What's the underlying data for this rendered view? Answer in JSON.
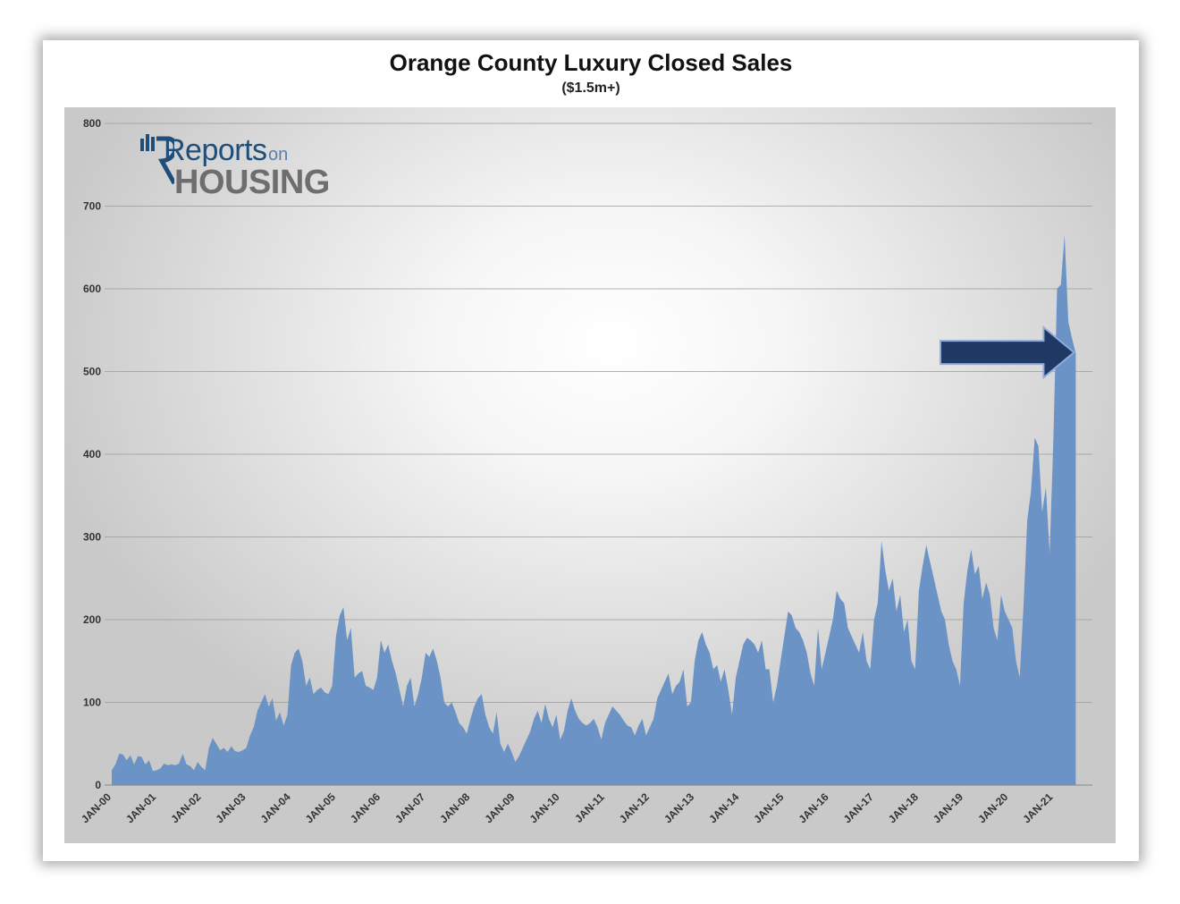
{
  "title": "Orange County Luxury Closed Sales",
  "subtitle": "($1.5m+)",
  "logo": {
    "word1": "Reports",
    "word2": "on",
    "word3": "HOUSING"
  },
  "colors": {
    "area": "#6b93c6",
    "arrow": "#1f3864",
    "grid": "#9a9a9a"
  },
  "chart_data": {
    "type": "area",
    "title": "Orange County Luxury Closed Sales",
    "subtitle": "($1.5m+)",
    "ylim": [
      0,
      800
    ],
    "yticks": [
      0,
      100,
      200,
      300,
      400,
      500,
      600,
      700,
      800
    ],
    "xticks": [
      "JAN-00",
      "JAN-01",
      "JAN-02",
      "JAN-03",
      "JAN-04",
      "JAN-05",
      "JAN-06",
      "JAN-07",
      "JAN-08",
      "JAN-09",
      "JAN-10",
      "JAN-11",
      "JAN-12",
      "JAN-13",
      "JAN-14",
      "JAN-15",
      "JAN-16",
      "JAN-17",
      "JAN-18",
      "JAN-19",
      "JAN-20",
      "JAN-21"
    ],
    "grid": true,
    "annotation": "arrow pointing to latest value",
    "series": [
      {
        "values": [
          18,
          25,
          38,
          37,
          30,
          36,
          25,
          35,
          34,
          25,
          30,
          17,
          18,
          20,
          26,
          24,
          25,
          24,
          26,
          38,
          25,
          23,
          18,
          28,
          22,
          18,
          45,
          57,
          50,
          42,
          45,
          40,
          47,
          41,
          40,
          42,
          45,
          60,
          70,
          90,
          100,
          110,
          95,
          105,
          78,
          88,
          72,
          85,
          145,
          160,
          165,
          150,
          120,
          130,
          110,
          115,
          118,
          112,
          110,
          120,
          180,
          205,
          215,
          175,
          190,
          130,
          135,
          138,
          120,
          118,
          115,
          130,
          175,
          160,
          170,
          150,
          135,
          115,
          95,
          120,
          130,
          95,
          110,
          130,
          160,
          155,
          165,
          150,
          130,
          100,
          95,
          100,
          88,
          75,
          70,
          62,
          80,
          95,
          105,
          110,
          85,
          70,
          62,
          88,
          50,
          40,
          50,
          40,
          28,
          35,
          45,
          55,
          65,
          80,
          90,
          75,
          98,
          80,
          70,
          85,
          55,
          65,
          90,
          105,
          90,
          80,
          75,
          72,
          75,
          80,
          70,
          55,
          75,
          85,
          95,
          90,
          85,
          78,
          72,
          70,
          60,
          72,
          80,
          60,
          70,
          80,
          105,
          115,
          125,
          135,
          110,
          120,
          125,
          140,
          95,
          100,
          150,
          175,
          185,
          170,
          160,
          140,
          145,
          125,
          140,
          115,
          85,
          130,
          150,
          170,
          178,
          175,
          170,
          160,
          175,
          140,
          140,
          100,
          120,
          150,
          180,
          210,
          205,
          190,
          185,
          175,
          160,
          135,
          120,
          190,
          140,
          160,
          180,
          200,
          235,
          225,
          220,
          190,
          180,
          170,
          160,
          185,
          150,
          140,
          200,
          220,
          295,
          260,
          235,
          250,
          210,
          230,
          185,
          200,
          150,
          140,
          235,
          265,
          290,
          270,
          250,
          230,
          210,
          200,
          170,
          150,
          140,
          120,
          220,
          260,
          285,
          255,
          265,
          225,
          245,
          230,
          190,
          175,
          230,
          210,
          200,
          190,
          150,
          130,
          215,
          320,
          355,
          420,
          410,
          330,
          360,
          280,
          420,
          600,
          605,
          665,
          560,
          540,
          522
        ]
      }
    ],
    "last_value": 522
  }
}
